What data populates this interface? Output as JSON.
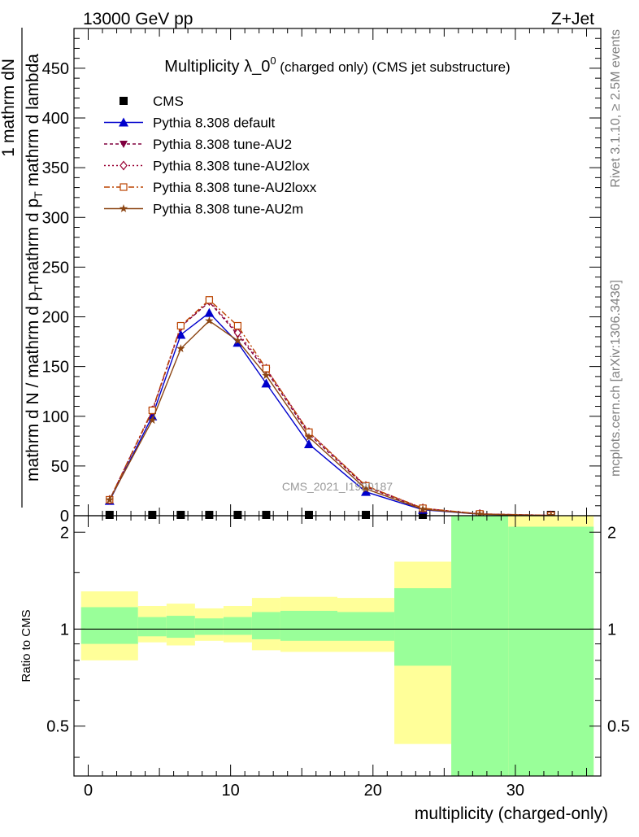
{
  "header": {
    "energy_label": "13000 GeV pp",
    "process_label": "Z+Jet",
    "side_version": "Rivet 3.1.10, ≥ 2.5M events",
    "side_site": "mcplots.cern.ch [arXiv:1306.3436]",
    "watermark": "CMS_2021_I1920187"
  },
  "colors": {
    "data": "#000000",
    "default": "#0000cc",
    "au2": "#80003f",
    "au2lox": "#990033",
    "au2loxx": "#bb4400",
    "au2m": "#8b4513",
    "band_inner": "#99ff99",
    "band_outer": "#ffff99"
  },
  "chart_data": [
    {
      "type": "line",
      "title_main": "Multiplicity λ_0",
      "title_sup": "0",
      "title_tail": " (charged only) (CMS jet substructure)",
      "ylabel_top": "1",
      "ylabel_num": "mathrm dN",
      "ylabel_den_main": "mathrm d N / mathrm d p",
      "ylabel_den_sub": "T",
      "ylabel_den_mid": "mathrm d p",
      "ylabel_den_sub2": "T",
      "ylabel_den_tail": " mathrm d lambda",
      "xlim": [
        -1,
        36
      ],
      "ylim": [
        0,
        490
      ],
      "y_ticks": [
        0,
        50,
        100,
        150,
        200,
        250,
        300,
        350,
        400,
        450
      ],
      "x": [
        1.5,
        4.5,
        6.5,
        8.5,
        10.5,
        12.5,
        15.5,
        19.5,
        23.5,
        27.5,
        32.5
      ],
      "legend_position": "top-left",
      "series": [
        {
          "name": "CMS",
          "key": "data",
          "marker": "square",
          "values": [
            0.5,
            0.5,
            0.5,
            0.5,
            0.5,
            0.5,
            0.5,
            0.5,
            0.5,
            0.5,
            0.5
          ]
        },
        {
          "name": "Pythia 8.308 default",
          "key": "default",
          "marker": "triangle-up",
          "dash": "",
          "values": [
            15,
            100,
            182,
            204,
            174,
            133,
            72,
            24,
            6,
            1.5,
            0.2
          ]
        },
        {
          "name": "Pythia 8.308 tune-AU2",
          "key": "au2",
          "marker": "triangle-down",
          "dash": "4,3",
          "values": [
            16,
            105,
            190,
            215,
            182,
            146,
            82,
            29,
            7,
            1.8,
            0.3
          ]
        },
        {
          "name": "Pythia 8.308 tune-AU2lox",
          "key": "au2lox",
          "marker": "diamond",
          "dash": "2,3",
          "values": [
            16,
            106,
            190,
            216,
            184,
            148,
            84,
            30,
            7.5,
            1.8,
            0.3
          ]
        },
        {
          "name": "Pythia 8.308 tune-AU2loxx",
          "key": "au2loxx",
          "marker": "open-square",
          "dash": "7,3,2,3",
          "values": [
            16,
            106,
            191,
            217,
            191,
            148,
            84,
            30,
            7.5,
            1.8,
            0.3
          ]
        },
        {
          "name": "Pythia 8.308 tune-AU2m",
          "key": "au2m",
          "marker": "star",
          "dash": "",
          "values": [
            16,
            96,
            168,
            196,
            176,
            141,
            79,
            27,
            6.5,
            1.5,
            0.2
          ]
        }
      ]
    },
    {
      "type": "area",
      "ylabel": "Ratio to CMS",
      "xlabel": "multiplicity (charged-only)",
      "xlim": [
        -1,
        36
      ],
      "ylim": [
        0.35,
        2.25
      ],
      "y_ticks_labeled": [
        0.5,
        1,
        2
      ],
      "x_ticks": [
        0,
        10,
        20,
        30
      ],
      "reference": 1,
      "bins": [
        {
          "lo": -0.5,
          "hi": 3.5,
          "outer": [
            0.8,
            1.31
          ],
          "inner": [
            0.9,
            1.17
          ]
        },
        {
          "lo": 3.5,
          "hi": 5.5,
          "outer": [
            0.91,
            1.18
          ],
          "inner": [
            0.95,
            1.09
          ]
        },
        {
          "lo": 5.5,
          "hi": 7.5,
          "outer": [
            0.89,
            1.2
          ],
          "inner": [
            0.94,
            1.1
          ]
        },
        {
          "lo": 7.5,
          "hi": 9.5,
          "outer": [
            0.92,
            1.16
          ],
          "inner": [
            0.96,
            1.08
          ]
        },
        {
          "lo": 9.5,
          "hi": 11.5,
          "outer": [
            0.91,
            1.18
          ],
          "inner": [
            0.96,
            1.09
          ]
        },
        {
          "lo": 11.5,
          "hi": 13.5,
          "outer": [
            0.86,
            1.25
          ],
          "inner": [
            0.93,
            1.13
          ]
        },
        {
          "lo": 13.5,
          "hi": 17.5,
          "outer": [
            0.85,
            1.26
          ],
          "inner": [
            0.92,
            1.14
          ]
        },
        {
          "lo": 17.5,
          "hi": 21.5,
          "outer": [
            0.85,
            1.25
          ],
          "inner": [
            0.92,
            1.13
          ]
        },
        {
          "lo": 21.5,
          "hi": 25.5,
          "outer": [
            0.44,
            1.62
          ],
          "inner": [
            0.77,
            1.34
          ]
        },
        {
          "lo": 25.5,
          "hi": 29.5,
          "outer": [
            0.3,
            2.4
          ],
          "inner": [
            0.3,
            2.4
          ]
        },
        {
          "lo": 29.5,
          "hi": 35.5,
          "outer": [
            0.3,
            2.4
          ],
          "inner": [
            0.3,
            2.08
          ]
        }
      ]
    }
  ]
}
